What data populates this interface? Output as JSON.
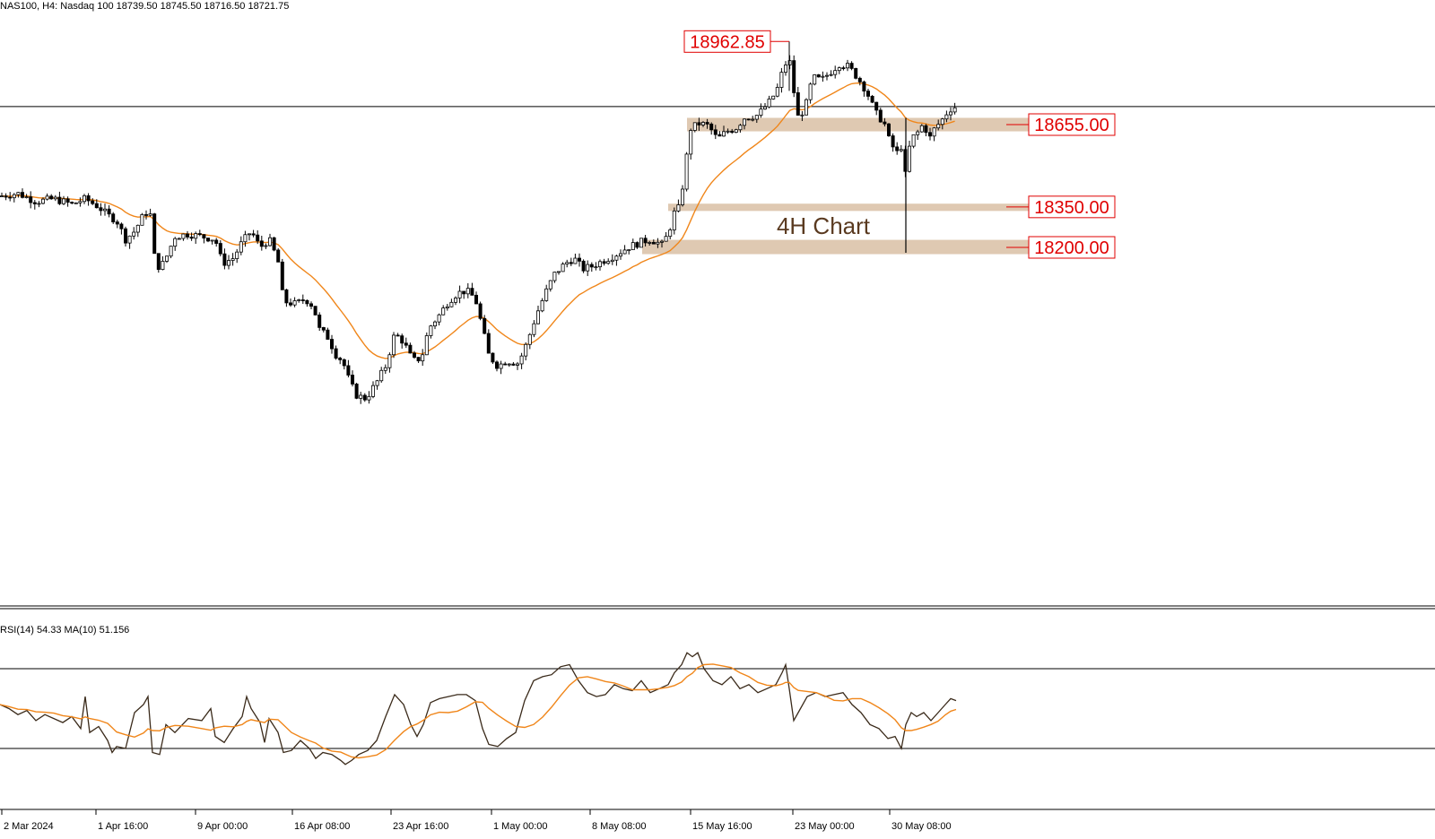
{
  "header": {
    "text": "NAS100, H4:  Nasdaq 100  18739.50 18745.50 18716.50 18721.75"
  },
  "indicator": {
    "text": "RSI(14) 54.33 MA(10) 51.156"
  },
  "colors": {
    "candle": "#000000",
    "ma": "#f0861a",
    "rsi": "#3a2a1a",
    "zone": "#d9bfa5",
    "label_border": "#e00000",
    "label_text": "#e00000",
    "annotation_text": "#5a3a20"
  },
  "chart_data": [
    {
      "type": "candlestick",
      "title": "",
      "annotation": "4H Chart",
      "y_range": [
        17700,
        19000
      ],
      "x_tick_labels": [
        "2 Mar 2024",
        "1 Apr 16:00",
        "9 Apr 00:00",
        "16 Apr 08:00",
        "23 Apr 16:00",
        "1 May 00:00",
        "8 May 08:00",
        "15 May 16:00",
        "23 May 00:00",
        "30 May 08:00"
      ],
      "price_labels": [
        "18962.85",
        "18655.00",
        "18350.00",
        "18200.00"
      ],
      "levels": [
        {
          "label": "18962.85",
          "value": 18962.85,
          "kind": "high"
        },
        {
          "label": "18655.00",
          "value": 18655.0,
          "kind": "zone",
          "band": [
            18630,
            18680
          ]
        },
        {
          "label": "18350.00",
          "value": 18350.0,
          "kind": "zone",
          "band": [
            18335,
            18362
          ]
        },
        {
          "label": "18200.00",
          "value": 18200.0,
          "kind": "zone",
          "band": [
            18175,
            18228
          ]
        }
      ],
      "current_price": 18721.75,
      "close_path": [
        [
          0,
          18390
        ],
        [
          20,
          18400
        ],
        [
          40,
          18370
        ],
        [
          60,
          18380
        ],
        [
          80,
          18360
        ],
        [
          95,
          18380
        ],
        [
          110,
          18350
        ],
        [
          120,
          18320
        ],
        [
          130,
          18300
        ],
        [
          140,
          18230
        ],
        [
          150,
          18260
        ],
        [
          160,
          18320
        ],
        [
          167,
          18340
        ],
        [
          172,
          18170
        ],
        [
          178,
          18120
        ],
        [
          185,
          18160
        ],
        [
          195,
          18240
        ],
        [
          210,
          18250
        ],
        [
          225,
          18240
        ],
        [
          240,
          18230
        ],
        [
          248,
          18140
        ],
        [
          260,
          18160
        ],
        [
          270,
          18220
        ],
        [
          280,
          18260
        ],
        [
          290,
          18200
        ],
        [
          300,
          18230
        ],
        [
          310,
          18150
        ],
        [
          316,
          18000
        ],
        [
          330,
          17990
        ],
        [
          340,
          18010
        ],
        [
          350,
          17980
        ],
        [
          355,
          17900
        ],
        [
          365,
          17870
        ],
        [
          375,
          17800
        ],
        [
          382,
          17780
        ],
        [
          390,
          17700
        ],
        [
          398,
          17650
        ],
        [
          408,
          17640
        ],
        [
          420,
          17700
        ],
        [
          430,
          17760
        ],
        [
          440,
          17880
        ],
        [
          450,
          17850
        ],
        [
          460,
          17780
        ],
        [
          470,
          17790
        ],
        [
          478,
          17900
        ],
        [
          490,
          17950
        ],
        [
          500,
          18000
        ],
        [
          510,
          18030
        ],
        [
          520,
          18040
        ],
        [
          530,
          18010
        ],
        [
          538,
          17900
        ],
        [
          545,
          17800
        ],
        [
          555,
          17760
        ],
        [
          565,
          17780
        ],
        [
          578,
          17770
        ],
        [
          588,
          17850
        ],
        [
          598,
          17950
        ],
        [
          608,
          18030
        ],
        [
          618,
          18100
        ],
        [
          630,
          18140
        ],
        [
          640,
          18160
        ],
        [
          650,
          18120
        ],
        [
          660,
          18130
        ],
        [
          672,
          18150
        ],
        [
          685,
          18170
        ],
        [
          700,
          18200
        ],
        [
          715,
          18220
        ],
        [
          725,
          18230
        ],
        [
          738,
          18210
        ],
        [
          745,
          18250
        ],
        [
          752,
          18330
        ],
        [
          758,
          18350
        ],
        [
          764,
          18500
        ],
        [
          770,
          18640
        ],
        [
          780,
          18660
        ],
        [
          790,
          18650
        ],
        [
          800,
          18600
        ],
        [
          810,
          18630
        ],
        [
          820,
          18640
        ],
        [
          830,
          18680
        ],
        [
          845,
          18690
        ],
        [
          858,
          18740
        ],
        [
          866,
          18780
        ],
        [
          874,
          18870
        ],
        [
          880,
          18900
        ],
        [
          884,
          18800
        ],
        [
          890,
          18680
        ],
        [
          898,
          18720
        ],
        [
          906,
          18830
        ],
        [
          916,
          18820
        ],
        [
          926,
          18850
        ],
        [
          936,
          18880
        ],
        [
          946,
          18870
        ],
        [
          956,
          18830
        ],
        [
          966,
          18780
        ],
        [
          976,
          18700
        ],
        [
          986,
          18660
        ],
        [
          992,
          18590
        ],
        [
          1000,
          18550
        ],
        [
          1006,
          18580
        ],
        [
          1010,
          18450
        ],
        [
          1015,
          18600
        ],
        [
          1022,
          18620
        ],
        [
          1030,
          18660
        ],
        [
          1036,
          18600
        ],
        [
          1042,
          18640
        ],
        [
          1050,
          18670
        ],
        [
          1058,
          18710
        ],
        [
          1066,
          18722
        ]
      ]
    },
    {
      "type": "line",
      "title": "",
      "y_range": [
        0,
        100
      ],
      "levels": [
        70,
        30
      ],
      "rsi_path": [
        [
          0,
          52
        ],
        [
          10,
          50
        ],
        [
          20,
          47
        ],
        [
          30,
          49
        ],
        [
          40,
          44
        ],
        [
          50,
          47
        ],
        [
          60,
          45
        ],
        [
          70,
          43
        ],
        [
          80,
          46
        ],
        [
          90,
          40
        ],
        [
          95,
          56
        ],
        [
          100,
          38
        ],
        [
          110,
          41
        ],
        [
          120,
          34
        ],
        [
          125,
          28
        ],
        [
          130,
          31
        ],
        [
          140,
          30
        ],
        [
          150,
          48
        ],
        [
          160,
          52
        ],
        [
          165,
          56
        ],
        [
          170,
          28
        ],
        [
          178,
          27
        ],
        [
          185,
          42
        ],
        [
          195,
          38
        ],
        [
          210,
          45
        ],
        [
          225,
          44
        ],
        [
          235,
          50
        ],
        [
          240,
          36
        ],
        [
          250,
          33
        ],
        [
          260,
          40
        ],
        [
          270,
          46
        ],
        [
          275,
          56
        ],
        [
          280,
          50
        ],
        [
          290,
          43
        ],
        [
          295,
          33
        ],
        [
          300,
          45
        ],
        [
          310,
          38
        ],
        [
          316,
          28
        ],
        [
          325,
          29
        ],
        [
          335,
          34
        ],
        [
          345,
          30
        ],
        [
          352,
          25
        ],
        [
          360,
          28
        ],
        [
          370,
          27
        ],
        [
          380,
          24
        ],
        [
          385,
          22
        ],
        [
          392,
          24
        ],
        [
          400,
          27
        ],
        [
          410,
          29
        ],
        [
          420,
          34
        ],
        [
          430,
          46
        ],
        [
          440,
          57
        ],
        [
          450,
          52
        ],
        [
          458,
          42
        ],
        [
          465,
          36
        ],
        [
          472,
          42
        ],
        [
          480,
          53
        ],
        [
          490,
          55
        ],
        [
          500,
          56
        ],
        [
          510,
          57
        ],
        [
          520,
          57
        ],
        [
          530,
          54
        ],
        [
          538,
          40
        ],
        [
          545,
          32
        ],
        [
          555,
          31
        ],
        [
          565,
          35
        ],
        [
          575,
          38
        ],
        [
          585,
          54
        ],
        [
          595,
          64
        ],
        [
          605,
          66
        ],
        [
          615,
          67
        ],
        [
          625,
          71
        ],
        [
          635,
          72
        ],
        [
          645,
          64
        ],
        [
          655,
          58
        ],
        [
          665,
          56
        ],
        [
          675,
          57
        ],
        [
          685,
          62
        ],
        [
          695,
          60
        ],
        [
          705,
          59
        ],
        [
          715,
          64
        ],
        [
          725,
          58
        ],
        [
          735,
          60
        ],
        [
          745,
          62
        ],
        [
          752,
          68
        ],
        [
          760,
          72
        ],
        [
          766,
          78
        ],
        [
          772,
          76
        ],
        [
          778,
          78
        ],
        [
          785,
          70
        ],
        [
          795,
          64
        ],
        [
          805,
          62
        ],
        [
          815,
          66
        ],
        [
          825,
          60
        ],
        [
          835,
          62
        ],
        [
          845,
          58
        ],
        [
          855,
          60
        ],
        [
          865,
          62
        ],
        [
          872,
          68
        ],
        [
          876,
          72
        ],
        [
          880,
          60
        ],
        [
          885,
          44
        ],
        [
          890,
          48
        ],
        [
          900,
          56
        ],
        [
          910,
          58
        ],
        [
          920,
          56
        ],
        [
          930,
          57
        ],
        [
          940,
          58
        ],
        [
          950,
          52
        ],
        [
          960,
          48
        ],
        [
          970,
          42
        ],
        [
          980,
          40
        ],
        [
          990,
          35
        ],
        [
          998,
          36
        ],
        [
          1005,
          30
        ],
        [
          1010,
          42
        ],
        [
          1016,
          48
        ],
        [
          1022,
          46
        ],
        [
          1030,
          48
        ],
        [
          1038,
          44
        ],
        [
          1046,
          48
        ],
        [
          1054,
          52
        ],
        [
          1060,
          55
        ],
        [
          1066,
          54
        ]
      ]
    }
  ]
}
